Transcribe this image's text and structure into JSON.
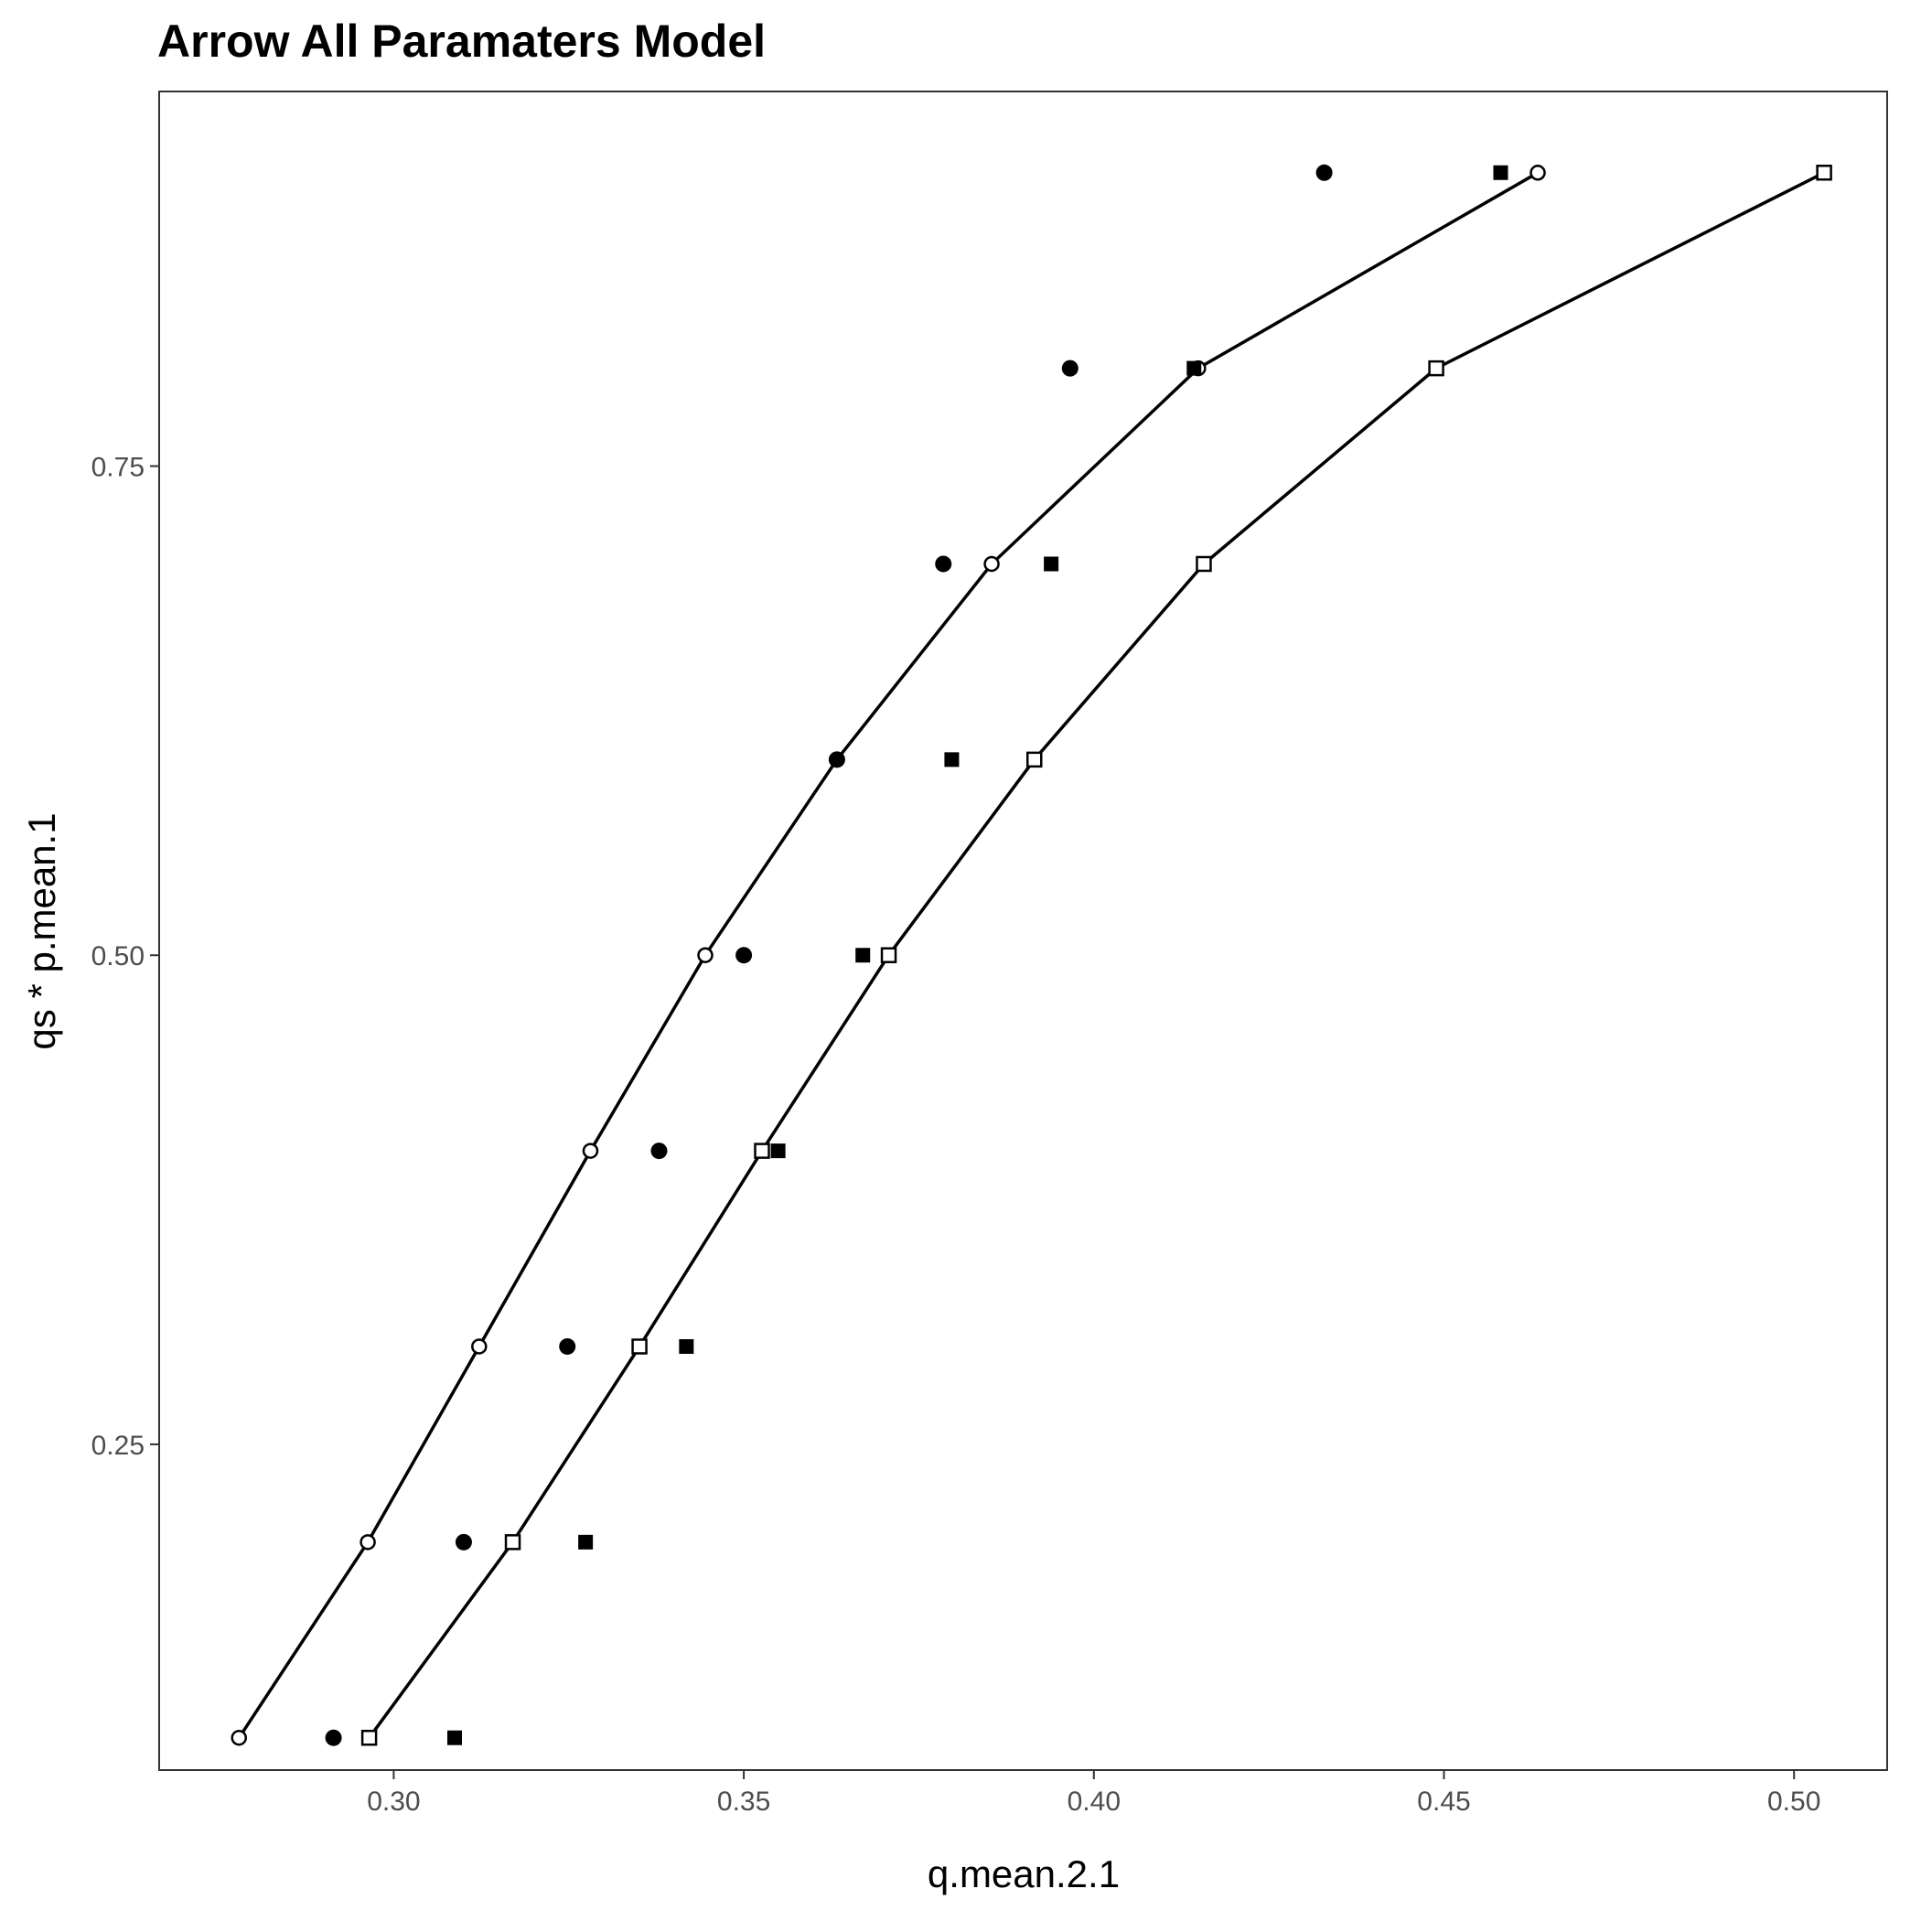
{
  "chart_data": {
    "type": "scatter",
    "title": "Arrow  All Paramaters Model",
    "xlabel": "q.mean.2.1",
    "ylabel": "qs * p.mean.1",
    "xlim": [
      0.2665,
      0.5133
    ],
    "ylim": [
      0.0835,
      0.9415
    ],
    "xticks": [
      {
        "value": 0.3,
        "label": "0.30"
      },
      {
        "value": 0.35,
        "label": "0.35"
      },
      {
        "value": 0.4,
        "label": "0.40"
      },
      {
        "value": 0.45,
        "label": "0.45"
      },
      {
        "value": 0.5,
        "label": "0.50"
      }
    ],
    "yticks": [
      {
        "value": 0.25,
        "label": "0.25"
      },
      {
        "value": 0.5,
        "label": "0.50"
      },
      {
        "value": 0.75,
        "label": "0.75"
      }
    ],
    "grid": false,
    "legend": "none",
    "series": [
      {
        "marker": "open-circle",
        "connected": true,
        "points": [
          [
            0.2779,
            0.1
          ],
          [
            0.2963,
            0.2
          ],
          [
            0.3122,
            0.3
          ],
          [
            0.3281,
            0.4
          ],
          [
            0.3445,
            0.5
          ],
          [
            0.3633,
            0.6
          ],
          [
            0.3854,
            0.7
          ],
          [
            0.4149,
            0.8
          ],
          [
            0.4634,
            0.9
          ]
        ]
      },
      {
        "marker": "open-square",
        "connected": true,
        "points": [
          [
            0.2965,
            0.1
          ],
          [
            0.317,
            0.2
          ],
          [
            0.3351,
            0.3
          ],
          [
            0.3526,
            0.4
          ],
          [
            0.3707,
            0.5
          ],
          [
            0.3915,
            0.6
          ],
          [
            0.4157,
            0.7
          ],
          [
            0.4489,
            0.8
          ],
          [
            0.5043,
            0.9
          ]
        ]
      },
      {
        "marker": "filled-circle",
        "connected": false,
        "points": [
          [
            0.2914,
            0.1
          ],
          [
            0.31,
            0.2
          ],
          [
            0.3248,
            0.3
          ],
          [
            0.3379,
            0.4
          ],
          [
            0.35,
            0.5
          ],
          [
            0.3633,
            0.6
          ],
          [
            0.3785,
            0.7
          ],
          [
            0.3966,
            0.8
          ],
          [
            0.4329,
            0.9
          ]
        ]
      },
      {
        "marker": "filled-square",
        "connected": false,
        "points": [
          [
            0.3087,
            0.1
          ],
          [
            0.3274,
            0.2
          ],
          [
            0.3418,
            0.3
          ],
          [
            0.3549,
            0.4
          ],
          [
            0.367,
            0.5
          ],
          [
            0.3797,
            0.6
          ],
          [
            0.3939,
            0.7
          ],
          [
            0.4143,
            0.8
          ],
          [
            0.4581,
            0.9
          ]
        ]
      }
    ]
  }
}
